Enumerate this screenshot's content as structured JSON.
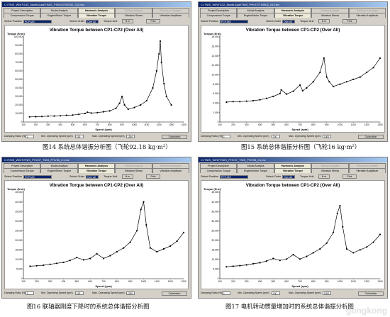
{
  "panels": [
    {
      "title": "C:\\TNIS_WINT\\132_5kwth-load\\TNAS_PHV02\\TNIS02_013.tnv",
      "tabs_top": [
        "Project Description",
        "Modal Analysis",
        "Harmonic Analysis",
        "Startup Analysis",
        "Shutdown Analysis"
      ],
      "tabs_bottom": [
        "Compression Torque",
        "Engine/Motor Torque",
        "Vibration Torque",
        "Vibration Stress",
        "Vibration Amplitude"
      ],
      "select_position_label": "Select Position",
      "select_position_value": "PCP-M/2",
      "select_order_label": "Select Order",
      "select_order_value": "Over All",
      "torque_unit_label": "Torque Unit",
      "unit_button": "N·m",
      "print_button": "Print",
      "chart_title": "Vibration Torque between CP1-CP2 (Over All)",
      "ylabel": "Torque (N·m)",
      "xlabel": "Speed (rpm)",
      "y_ticks": [
        "0",
        "10,000",
        "20,000",
        "30,000",
        "40,000",
        "50,000",
        "60,000",
        "70,000",
        "80,000",
        "90,000",
        "100,000"
      ],
      "x_ticks": [
        "100",
        "200",
        "300",
        "400",
        "500",
        "600",
        "700",
        "800",
        "900",
        "1000",
        "1100",
        "1200",
        "1300",
        "1400"
      ],
      "damping_label": "Damping Ratio (%)",
      "damping_value": "1",
      "min_speed_label": "Min. Operating Speed (rpm)",
      "min_speed_value": "100",
      "max_speed_label": "Max. Operating Speed (rpm)",
      "max_speed_value": "1300",
      "calc_button": "Calculation",
      "caption": "图14  系统总体谐振分析图（飞轮92.18 kg·m²）"
    },
    {
      "title": "C:\\TNIS_WINT\\132_5kwth-load\\TNIS_PHV17\\TNIS02_013.tnv",
      "tabs_top": [
        "Project Description",
        "Modal Analysis",
        "Harmonic Analysis",
        "Startup Analysis",
        "Shutdown Analysis"
      ],
      "tabs_bottom": [
        "Compression Torque",
        "Engine/Motor Torque",
        "Vibration Torque",
        "Vibration Stress",
        "Vibration Amplitude"
      ],
      "select_position_label": "Select Position",
      "select_position_value": "PCP-M/2",
      "select_order_label": "Select Order",
      "select_order_value": "Over All",
      "torque_unit_label": "Torque Unit",
      "unit_button": "N·m",
      "print_button": "Print",
      "chart_title": "Vibration Torque between CP1-CP2 (Over All)",
      "ylabel": "Torque (N·m)",
      "xlabel": "Speed (rpm)",
      "y_ticks": [
        "0",
        "2,000",
        "4,000",
        "6,000",
        "8,000",
        "10,000",
        "12,000",
        "14,000",
        "16,000",
        "18,000"
      ],
      "x_ticks": [
        "100",
        "200",
        "300",
        "400",
        "500",
        "600",
        "700",
        "800",
        "900",
        "1000",
        "1100",
        "1200",
        "1300"
      ],
      "damping_label": "Damping Ratio (%)",
      "damping_value": "1",
      "min_speed_label": "Min. Operating Speed (rpm)",
      "min_speed_value": "100",
      "max_speed_label": "Max. Operating Speed (rpm)",
      "max_speed_value": "1300",
      "calc_button": "Calculation",
      "caption": "图15  系统总体谐振分析图（飞轮16 kg·m²）"
    },
    {
      "title": "C:\\TNIS_WINT\\TNIS_PHV37_TNIS_PHV33_C1.tnv",
      "tabs_top": [
        "Project Description",
        "Modal Analysis",
        "Harmonic Analysis",
        "Startup Analysis",
        "Shutdown Analysis"
      ],
      "tabs_bottom": [
        "Compression Torque",
        "Engine/Motor Torque",
        "Vibration Torque",
        "Vibration Stress",
        "Vibration Amplitude"
      ],
      "select_position_label": "Select Position",
      "select_position_value": "PCP-M/2",
      "select_order_label": "Select Order",
      "select_order_value": "Over All",
      "torque_unit_label": "Torque Unit",
      "unit_button": "N·m",
      "print_button": "Print",
      "chart_title": "Vibration Torque between CP1-CP2 (Over All)",
      "ylabel": "Torque (N·m)",
      "xlabel": "Speed (rpm)",
      "y_ticks": [
        "0",
        "5,000",
        "10,000",
        "15,000",
        "20,000",
        "25,000",
        "30,000",
        "35,000",
        "40,000",
        "45,000"
      ],
      "x_ticks": [
        "100",
        "200",
        "300",
        "400",
        "500",
        "600",
        "700",
        "800",
        "900",
        "1000",
        "1100",
        "1200",
        "1300"
      ],
      "damping_label": "Damping Ratio (%)",
      "damping_value": "1",
      "min_speed_label": "Min. Operating Speed (rpm)",
      "min_speed_value": "100",
      "max_speed_label": "Max. Operating Speed (rpm)",
      "max_speed_value": "1300",
      "calc_button": "Calculation",
      "caption": "图16  联轴器刚度下降时的系统总体谐振分析图"
    },
    {
      "title": "C:\\TNIS_WINT\\TNIS_PHV37_TNIS_PHV33_C1.tnv",
      "tabs_top": [
        "Project Description",
        "Modal Analysis",
        "Harmonic Analysis",
        "Startup Analysis",
        "Shutdown Analysis"
      ],
      "tabs_bottom": [
        "Compression Torque",
        "Engine/Motor Torque",
        "Vibration Torque",
        "Vibration Stress",
        "Vibration Amplitude"
      ],
      "select_position_label": "Select Position",
      "select_position_value": "PCP-M/2",
      "select_order_label": "Select Order",
      "select_order_value": "Over All",
      "torque_unit_label": "Torque Unit",
      "unit_button": "N·m",
      "print_button": "Print",
      "chart_title": "Vibration Torque between CP1-CP2 (Over All)",
      "ylabel": "Torque (N·m)",
      "xlabel": "Speed (rpm)",
      "y_ticks": [
        "0",
        "5,000",
        "10,000",
        "15,000",
        "20,000",
        "25,000",
        "30,000",
        "35,000",
        "40,000",
        "45,000"
      ],
      "x_ticks": [
        "100",
        "200",
        "300",
        "400",
        "500",
        "600",
        "700",
        "800",
        "900",
        "1000",
        "1100",
        "1200",
        "1300"
      ],
      "damping_label": "Damping Ratio (%)",
      "damping_value": "1",
      "min_speed_label": "Min. Operating Speed (rpm)",
      "min_speed_value": "100",
      "max_speed_label": "Max. Operating Speed (rpm)",
      "max_speed_value": "1300",
      "calc_button": "Calculation",
      "caption": "图17  电机转动惯量增加时的系统总体谐振分析图"
    }
  ],
  "watermark": "gongkong",
  "chart_data": [
    {
      "type": "line",
      "title": "Vibration Torque between CP1-CP2 (Over All)",
      "xlabel": "Speed (rpm)",
      "ylabel": "Torque (N·m)",
      "xlim": [
        100,
        1400
      ],
      "ylim": [
        0,
        100000
      ],
      "x": [
        150,
        200,
        250,
        300,
        350,
        400,
        450,
        500,
        550,
        600,
        620,
        650,
        700,
        750,
        800,
        850,
        880,
        900,
        920,
        950,
        1000,
        1050,
        1100,
        1150,
        1180,
        1200,
        1210,
        1220,
        1240,
        1260,
        1300
      ],
      "y": [
        6000,
        6200,
        6500,
        6800,
        7000,
        7300,
        7800,
        8200,
        9000,
        10000,
        11500,
        10500,
        11000,
        12000,
        13000,
        16000,
        22000,
        30000,
        20000,
        15000,
        17000,
        20000,
        25000,
        40000,
        60000,
        80000,
        95000,
        70000,
        45000,
        30000,
        20000
      ]
    },
    {
      "type": "line",
      "title": "Vibration Torque between CP1-CP2 (Over All)",
      "xlabel": "Speed (rpm)",
      "ylabel": "Torque (N·m)",
      "xlim": [
        100,
        1300
      ],
      "ylim": [
        0,
        18000
      ],
      "x": [
        150,
        200,
        250,
        300,
        350,
        400,
        450,
        500,
        550,
        560,
        600,
        650,
        700,
        720,
        750,
        800,
        850,
        880,
        900,
        920,
        950,
        1000,
        1050,
        1100,
        1150,
        1200,
        1250,
        1300
      ],
      "y": [
        4200,
        4300,
        4300,
        4400,
        4500,
        4700,
        5000,
        5400,
        6000,
        6800,
        5900,
        6500,
        7800,
        6600,
        7200,
        8500,
        10500,
        13500,
        9500,
        8500,
        7500,
        8000,
        8500,
        9000,
        9500,
        10500,
        11500,
        13500
      ]
    },
    {
      "type": "line",
      "title": "Vibration Torque between CP1-CP2 (Over All)",
      "xlabel": "Speed (rpm)",
      "ylabel": "Torque (N·m)",
      "xlim": [
        100,
        1300
      ],
      "ylim": [
        0,
        45000
      ],
      "x": [
        150,
        200,
        250,
        300,
        350,
        400,
        450,
        500,
        550,
        600,
        650,
        700,
        750,
        800,
        850,
        900,
        950,
        980,
        1000,
        1020,
        1050,
        1100,
        1150,
        1200,
        1250,
        1300
      ],
      "y": [
        6500,
        6700,
        7000,
        7500,
        8000,
        8500,
        9500,
        11000,
        9800,
        10500,
        13000,
        10500,
        12000,
        14000,
        16000,
        19000,
        25000,
        36000,
        40000,
        28000,
        16000,
        14000,
        15500,
        17000,
        19500,
        24000
      ]
    },
    {
      "type": "line",
      "title": "Vibration Torque between CP1-CP2 (Over All)",
      "xlabel": "Speed (rpm)",
      "ylabel": "Torque (N·m)",
      "xlim": [
        100,
        1300
      ],
      "ylim": [
        0,
        45000
      ],
      "x": [
        150,
        200,
        250,
        300,
        350,
        400,
        450,
        500,
        550,
        600,
        650,
        700,
        750,
        800,
        850,
        900,
        950,
        980,
        1000,
        1020,
        1050,
        1100,
        1150,
        1200,
        1250,
        1300
      ],
      "y": [
        6200,
        6500,
        6800,
        7200,
        7800,
        8300,
        9200,
        10500,
        9500,
        10200,
        12500,
        10200,
        11600,
        13500,
        15500,
        18500,
        24000,
        34000,
        38000,
        27000,
        15500,
        13500,
        15000,
        16500,
        19000,
        23000
      ]
    }
  ]
}
